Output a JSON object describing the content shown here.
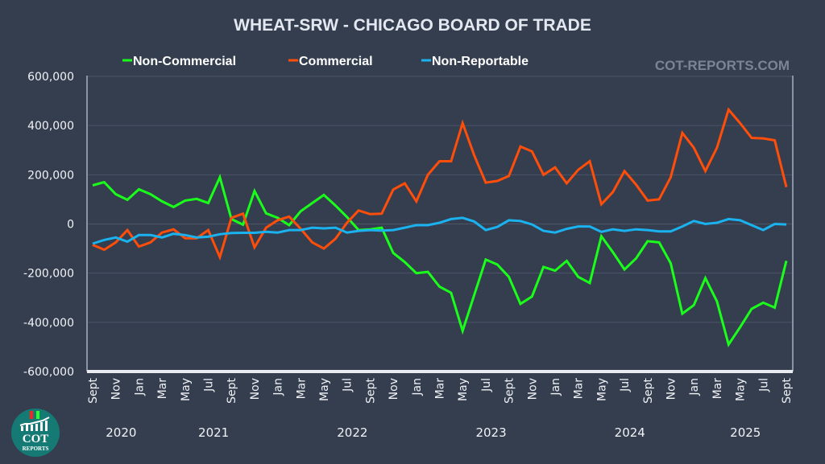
{
  "chart_data": {
    "type": "line",
    "title": "WHEAT-SRW - CHICAGO BOARD OF TRADE",
    "watermark": "COT-REPORTS.COM",
    "xlabel": "",
    "ylabel": "",
    "ylim": [
      -600000,
      600000
    ],
    "yticks": [
      600000,
      400000,
      200000,
      0,
      -200000,
      -400000,
      -600000
    ],
    "ytick_labels": [
      "600,000",
      "400,000",
      "200,000",
      "0",
      "-200,000",
      "-400,000",
      "-600,000"
    ],
    "grid": true,
    "legend_position": "top",
    "x_month_labels": [
      "Sept",
      "Nov",
      "Jan",
      "Mar",
      "May",
      "Jul",
      "Sept",
      "Nov",
      "Jan",
      "Mar",
      "May",
      "Jul",
      "Sept",
      "Nov",
      "Jan",
      "Mar",
      "May",
      "Jul",
      "Sept",
      "Nov",
      "Jan",
      "Mar",
      "May",
      "Jul",
      "Sept",
      "Nov",
      "Jan",
      "Mar",
      "May",
      "Jul",
      "Sept"
    ],
    "x_year_labels": [
      {
        "label": "2020",
        "month_index": 1
      },
      {
        "label": "2021",
        "month_index": 9
      },
      {
        "label": "2022",
        "month_index": 21
      },
      {
        "label": "2023",
        "month_index": 33
      },
      {
        "label": "2024",
        "month_index": 45
      },
      {
        "label": "2025",
        "month_index": 55
      }
    ],
    "x_start": "2020-09",
    "x_end": "2025-09",
    "series": [
      {
        "name": "Non-Commercial",
        "color": "#1aff1a",
        "values": [
          157000,
          170000,
          121000,
          98000,
          141000,
          121000,
          92000,
          69000,
          95000,
          102000,
          85000,
          190000,
          20000,
          -3000,
          134000,
          43000,
          25000,
          -5000,
          52000,
          85000,
          118000,
          75000,
          28000,
          -25000,
          -22000,
          -15000,
          -118000,
          -155000,
          -200000,
          -195000,
          -255000,
          -280000,
          -435000,
          -290000,
          -145000,
          -165000,
          -215000,
          -325000,
          -295000,
          -175000,
          -190000,
          -150000,
          -215000,
          -240000,
          -50000,
          -115000,
          -185000,
          -140000,
          -70000,
          -75000,
          -160000,
          -365000,
          -330000,
          -220000,
          -315000,
          -490000,
          -420000,
          -345000,
          -320000,
          -340000,
          -150000
        ]
      },
      {
        "name": "Commercial",
        "color": "#ff4d0a",
        "values": [
          -85000,
          -105000,
          -75000,
          -25000,
          -92000,
          -75000,
          -35000,
          -22000,
          -58000,
          -58000,
          -25000,
          -135000,
          25000,
          42000,
          -95000,
          -15000,
          15000,
          30000,
          -20000,
          -75000,
          -100000,
          -60000,
          5000,
          55000,
          40000,
          42000,
          140000,
          165000,
          92000,
          200000,
          255000,
          255000,
          410000,
          280000,
          168000,
          175000,
          195000,
          315000,
          295000,
          200000,
          230000,
          165000,
          220000,
          255000,
          80000,
          130000,
          215000,
          160000,
          95000,
          100000,
          190000,
          370000,
          310000,
          215000,
          310000,
          465000,
          410000,
          350000,
          348000,
          340000,
          150000
        ]
      },
      {
        "name": "Non-Reportable",
        "color": "#1ab2ef",
        "values": [
          -80000,
          -65000,
          -55000,
          -72000,
          -45000,
          -45000,
          -55000,
          -40000,
          -45000,
          -55000,
          -52000,
          -42000,
          -37000,
          -36000,
          -36000,
          -32000,
          -35000,
          -25000,
          -25000,
          -15000,
          -18000,
          -15000,
          -35000,
          -28000,
          -25000,
          -27000,
          -25000,
          -15000,
          -5000,
          -5000,
          5000,
          20000,
          25000,
          10000,
          -25000,
          -12000,
          15000,
          12000,
          -2000,
          -28000,
          -35000,
          -20000,
          -10000,
          -10000,
          -32000,
          -22000,
          -28000,
          -22000,
          -25000,
          -30000,
          -30000,
          -10000,
          12000,
          0,
          5000,
          20000,
          15000,
          -5000,
          -25000,
          0,
          -2000
        ]
      }
    ]
  },
  "logo": {
    "line1": "COT",
    "line2": "REPORTS"
  }
}
